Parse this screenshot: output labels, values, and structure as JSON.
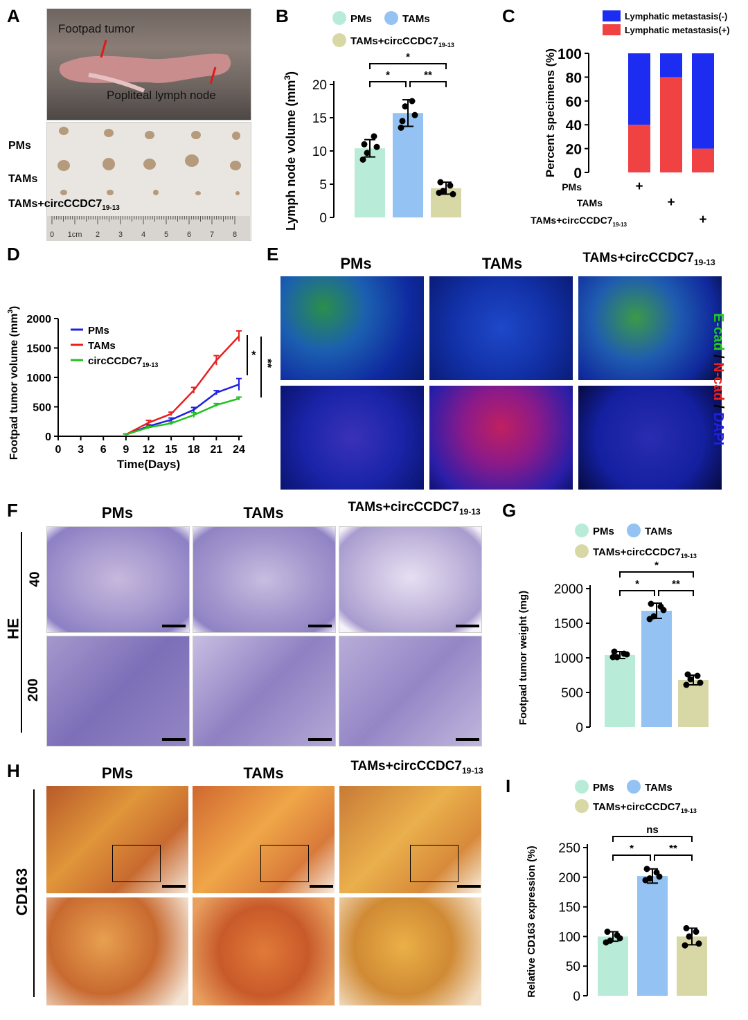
{
  "panels": {
    "A": {
      "letter": "A",
      "labels": {
        "footpad": "Footpad tumor",
        "popliteal": "Popliteal lymph node"
      },
      "rows": [
        "PMs",
        "TAMs",
        "TAMs+circCCDC7"
      ],
      "row_sub": "19-13",
      "ruler_ticks": [
        "0",
        "1cm",
        "2",
        "3",
        "4",
        "5",
        "6",
        "7",
        "8"
      ]
    },
    "B": {
      "letter": "B",
      "legend": [
        "PMs",
        "TAMs",
        "TAMs+circCCDC7"
      ],
      "legend_sub": "19-13",
      "sig": [
        "*",
        "*",
        "**"
      ],
      "chart_data": {
        "type": "bar",
        "categories": [
          "PMs",
          "TAMs",
          "TAMs+circCCDC7 19-13"
        ],
        "values": [
          10.4,
          15.7,
          4.4
        ],
        "errors": [
          1.3,
          2.0,
          0.9
        ],
        "points": [
          [
            11.0,
            12.2,
            9.7,
            10.6,
            8.7
          ],
          [
            14.5,
            17.5,
            16.7,
            15.4,
            13.5
          ],
          [
            5.3,
            4.8,
            4.0,
            3.5,
            3.7
          ]
        ],
        "colors": [
          "#b8ecd8",
          "#94c2f2",
          "#d8d8a6"
        ],
        "ylabel": "Lymph node volume (mm3)",
        "ylim": [
          0,
          20
        ],
        "yticks": [
          "0",
          "5",
          "10",
          "15",
          "20"
        ]
      }
    },
    "C": {
      "letter": "C",
      "legend": [
        "Lymphatic metastasis(-)",
        "Lymphatic metastasis(+)"
      ],
      "rows": [
        "PMs",
        "TAMs",
        "TAMs+circCCDC7"
      ],
      "row_sub": "19-13",
      "plus": "+",
      "chart_data": {
        "type": "bar",
        "stacked": true,
        "categories": [
          "PMs",
          "TAMs",
          "TAMs+circCCDC7 19-13"
        ],
        "series": [
          {
            "name": "Lymphatic metastasis(+)",
            "values": [
              40,
              80,
              20
            ],
            "color": "#f04242"
          },
          {
            "name": "Lymphatic metastasis(-)",
            "values": [
              60,
              20,
              80
            ],
            "color": "#1c2cf0"
          }
        ],
        "ylabel": "Percent specimens (%)",
        "ylim": [
          0,
          100
        ],
        "yticks": [
          "0",
          "20",
          "40",
          "60",
          "80",
          "100"
        ]
      }
    },
    "D": {
      "letter": "D",
      "sig": [
        "*",
        "**"
      ],
      "chart_data": {
        "type": "line",
        "x": [
          0,
          3,
          6,
          9,
          12,
          15,
          18,
          21,
          24
        ],
        "series": [
          {
            "name": "PMs",
            "color": "#2020e0",
            "x": [
              9,
              12,
              15,
              18,
              21,
              24
            ],
            "values": [
              30,
              170,
              280,
              450,
              740,
              880
            ],
            "errors": [
              10,
              25,
              30,
              40,
              35,
              100
            ]
          },
          {
            "name": "TAMs",
            "color": "#e82020",
            "x": [
              9,
              12,
              15,
              18,
              21,
              24
            ],
            "values": [
              30,
              230,
              380,
              780,
              1290,
              1700
            ],
            "errors": [
              10,
              40,
              30,
              50,
              80,
              90
            ]
          },
          {
            "name": "circCCDC7",
            "name_sub": "19-13",
            "color": "#20c020",
            "x": [
              9,
              12,
              15,
              18,
              21,
              24
            ],
            "values": [
              30,
              150,
              220,
              360,
              530,
              640
            ],
            "errors": [
              10,
              20,
              25,
              40,
              25,
              25
            ]
          }
        ],
        "xlabel": "Time(Days)",
        "ylabel": "Footpad tumor volume (mm3)",
        "ylim": [
          0,
          2000
        ],
        "xticks": [
          "0",
          "3",
          "6",
          "9",
          "12",
          "15",
          "18",
          "21",
          "24"
        ],
        "yticks": [
          "0",
          "500",
          "1000",
          "1500",
          "2000"
        ]
      }
    },
    "E": {
      "letter": "E",
      "headers": [
        "PMs",
        "TAMs",
        "TAMs+circCCDC7"
      ],
      "header_sub": "19-13",
      "side": {
        "ecad": "E-cad",
        "slash1": " / ",
        "ncad": "N-cad",
        "slash2": " / ",
        "dapi": "DAPI"
      }
    },
    "F": {
      "letter": "F",
      "headers": [
        "PMs",
        "TAMs",
        "TAMs+circCCDC7"
      ],
      "header_sub": "19-13",
      "stain": "HE",
      "mags": [
        "40",
        "200"
      ]
    },
    "G": {
      "letter": "G",
      "legend": [
        "PMs",
        "TAMs",
        "TAMs+circCCDC7"
      ],
      "legend_sub": "19-13",
      "sig": [
        "*",
        "*",
        "**"
      ],
      "chart_data": {
        "type": "bar",
        "categories": [
          "PMs",
          "TAMs",
          "TAMs+circCCDC7 19-13"
        ],
        "values": [
          1040,
          1680,
          680
        ],
        "errors": [
          50,
          110,
          70
        ],
        "points": [
          [
            1090,
            1060,
            1010,
            1050,
            1010
          ],
          [
            1780,
            1740,
            1600,
            1690,
            1560
          ],
          [
            760,
            740,
            690,
            640,
            610
          ]
        ],
        "colors": [
          "#b8ecd8",
          "#94c2f2",
          "#d8d8a6"
        ],
        "ylabel": "Footpad tumor weight (mg)",
        "ylim": [
          0,
          2000
        ],
        "yticks": [
          "0",
          "500",
          "1000",
          "1500",
          "2000"
        ]
      }
    },
    "H": {
      "letter": "H",
      "headers": [
        "PMs",
        "TAMs",
        "TAMs+circCCDC7"
      ],
      "header_sub": "19-13",
      "stain": "CD163"
    },
    "I": {
      "letter": "I",
      "legend": [
        "PMs",
        "TAMs",
        "TAMs+circCCDC7"
      ],
      "legend_sub": "19-13",
      "sig": [
        "ns",
        "*",
        "**"
      ],
      "chart_data": {
        "type": "bar",
        "categories": [
          "PMs",
          "TAMs",
          "TAMs+circCCDC7 19-13"
        ],
        "values": [
          100,
          202,
          100
        ],
        "errors": [
          8,
          12,
          14
        ],
        "points": [
          [
            108,
            102,
            93,
            97,
            90
          ],
          [
            214,
            208,
            198,
            201,
            195
          ],
          [
            114,
            108,
            100,
            88,
            85
          ]
        ],
        "colors": [
          "#b8ecd8",
          "#94c2f2",
          "#d8d8a6"
        ],
        "ylabel": "Relative CD163 expression (%)",
        "ylim": [
          0,
          250
        ],
        "yticks": [
          "0",
          "50",
          "100",
          "150",
          "200",
          "250"
        ]
      }
    }
  }
}
